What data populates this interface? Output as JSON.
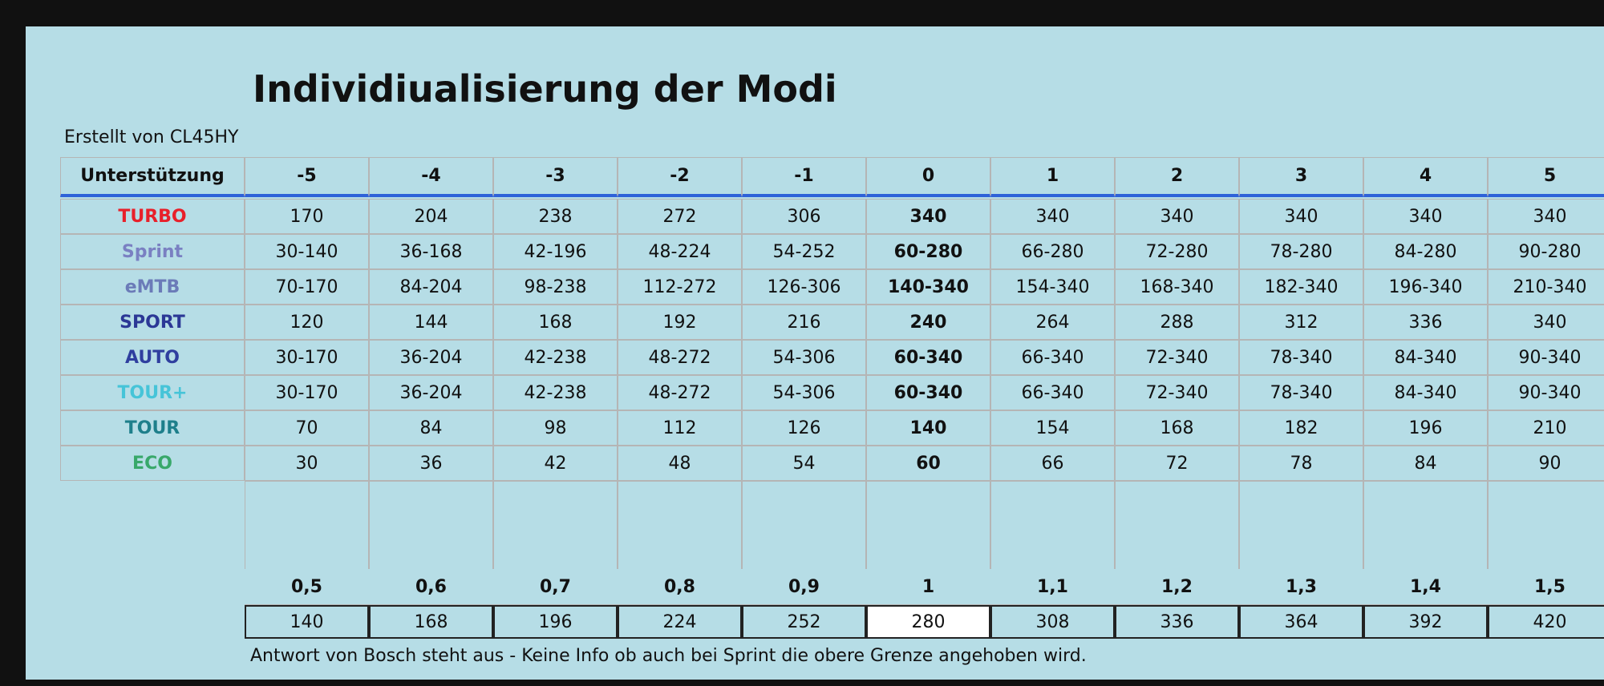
{
  "header": {
    "title": "Individiualisierung der Modi",
    "subtitle": "Erstellt von CL45HY"
  },
  "table": {
    "columns": [
      "Unterstützung",
      "-5",
      "-4",
      "-3",
      "-2",
      "-1",
      "0",
      "1",
      "2",
      "3",
      "4",
      "5"
    ],
    "rows": [
      [
        "TURBO",
        "170",
        "204",
        "238",
        "272",
        "306",
        "340",
        "340",
        "340",
        "340",
        "340",
        "340"
      ],
      [
        "Sprint",
        "30-140",
        "36-168",
        "42-196",
        "48-224",
        "54-252",
        "60-280",
        "66-280",
        "72-280",
        "78-280",
        "84-280",
        "90-280"
      ],
      [
        "eMTB",
        "70-170",
        "84-204",
        "98-238",
        "112-272",
        "126-306",
        "140-340",
        "154-340",
        "168-340",
        "182-340",
        "196-340",
        "210-340"
      ],
      [
        "SPORT",
        "120",
        "144",
        "168",
        "192",
        "216",
        "240",
        "264",
        "288",
        "312",
        "336",
        "340"
      ],
      [
        "AUTO",
        "30-170",
        "36-204",
        "42-238",
        "48-272",
        "54-306",
        "60-340",
        "66-340",
        "72-340",
        "78-340",
        "84-340",
        "90-340"
      ],
      [
        "TOUR+",
        "30-170",
        "36-204",
        "42-238",
        "48-272",
        "54-306",
        "60-340",
        "66-340",
        "72-340",
        "78-340",
        "84-340",
        "90-340"
      ],
      [
        "TOUR",
        "70",
        "84",
        "98",
        "112",
        "126",
        "140",
        "154",
        "168",
        "182",
        "196",
        "210"
      ],
      [
        "ECO",
        "30",
        "36",
        "42",
        "48",
        "54",
        "60",
        "66",
        "72",
        "78",
        "84",
        "90"
      ]
    ],
    "factors": [
      "0,5",
      "0,6",
      "0,7",
      "0,8",
      "0,9",
      "1",
      "1,1",
      "1,2",
      "1,3",
      "1,4",
      "1,5"
    ],
    "factor_values": [
      "140",
      "168",
      "196",
      "224",
      "252",
      "280",
      "308",
      "336",
      "364",
      "392",
      "420"
    ]
  },
  "footnote": "Antwort von Bosch steht aus - Keine Info ob auch bei Sprint die obere Grenze angehoben wird."
}
